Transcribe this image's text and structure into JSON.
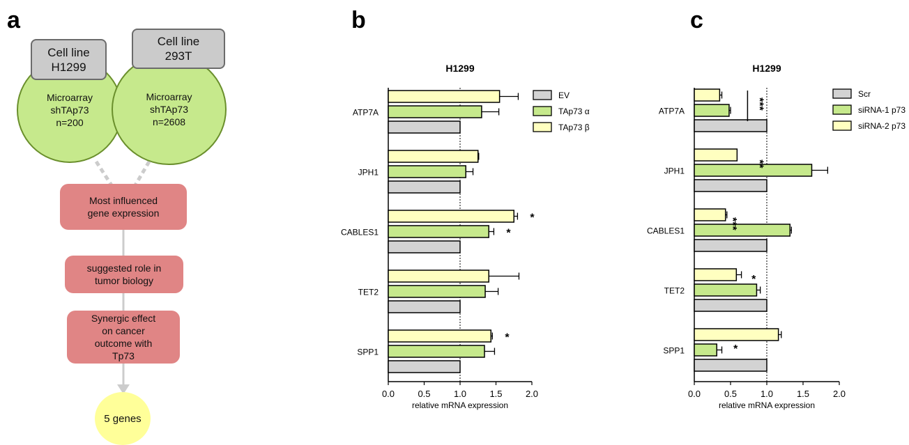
{
  "panel_a": {
    "letter": "a",
    "cell_box_1": "Cell line\nH1299",
    "cell_box_2": "Cell line\n293T",
    "circle_1": "Microarray\nshTAp73\nn=200",
    "circle_2": "Microarray\nshTAp73\nn=2608",
    "step_1": "Most influenced\ngene expression",
    "step_2": "suggested role in\ntumor biology",
    "step_3": "Synergic effect\non cancer\noutcome with\nTp73",
    "final": "5 genes",
    "colors": {
      "circle": "#c6e98c",
      "box": "#e08585",
      "cell_box": "#cbcbcb",
      "final": "#ffff99",
      "arrow": "#cccccc"
    }
  },
  "chart_data": [
    {
      "panel_letter": "b",
      "type": "bar",
      "orientation": "horizontal",
      "title": "H1299",
      "xlabel": "relative mRNA expression",
      "xlim": [
        0,
        2.0
      ],
      "xticks": [
        "0.0",
        "0.5",
        "1.0",
        "1.5",
        "2.0"
      ],
      "reference_line": 1.0,
      "categories": [
        "ATP7A",
        "JPH1",
        "CABLES1",
        "TET2",
        "SPP1"
      ],
      "series": [
        {
          "name": "EV",
          "color": "#d3d3d3",
          "values": [
            1.0,
            1.0,
            1.0,
            1.0,
            1.0
          ],
          "errors": [
            0,
            0,
            0,
            0,
            0
          ],
          "significance": [
            "",
            "",
            "",
            "",
            ""
          ]
        },
        {
          "name": "TAp73 α",
          "color": "#c6e98c",
          "values": [
            1.3,
            1.08,
            1.4,
            1.35,
            1.34
          ],
          "errors": [
            0.24,
            0.1,
            0.07,
            0.18,
            0.14
          ],
          "significance": [
            "",
            "",
            "*",
            "",
            ""
          ]
        },
        {
          "name": "TAp73 β",
          "color": "#ffffc0",
          "values": [
            1.55,
            1.25,
            1.75,
            1.4,
            1.43
          ],
          "errors": [
            0.26,
            0.01,
            0.05,
            0.42,
            0.02
          ],
          "significance": [
            "",
            "",
            "*",
            "",
            "*"
          ]
        }
      ],
      "legend_position": "top-right"
    },
    {
      "panel_letter": "c",
      "type": "bar",
      "orientation": "horizontal",
      "title": "H1299",
      "xlabel": "relative mRNA expression",
      "xlim": [
        0,
        2.0
      ],
      "xticks": [
        "0.0",
        "0.5",
        "1.0",
        "1.5",
        "2.0"
      ],
      "reference_line": 1.0,
      "categories": [
        "ATP7A",
        "JPH1",
        "CABLES1",
        "TET2",
        "SPP1"
      ],
      "series": [
        {
          "name": "Scr",
          "color": "#d3d3d3",
          "values": [
            1.0,
            1.0,
            1.0,
            1.0,
            1.0
          ],
          "errors": [
            0,
            0,
            0,
            0,
            0
          ],
          "significance": [
            "",
            "",
            "",
            "",
            ""
          ]
        },
        {
          "name": "siRNA-1 p73",
          "color": "#c6e98c",
          "values": [
            0.48,
            1.62,
            1.32,
            0.86,
            0.31
          ],
          "errors": [
            0.02,
            0.22,
            0.02,
            0.05,
            0.07
          ],
          "significance": [
            "",
            "",
            "",
            "",
            ""
          ]
        },
        {
          "name": "siRNA-2 p73",
          "color": "#ffffc0",
          "values": [
            0.35,
            0.59,
            0.43,
            0.58,
            1.16
          ],
          "errors": [
            0.03,
            0.0,
            0.02,
            0.07,
            0.04
          ],
          "significance": [
            "",
            "",
            "",
            "",
            ""
          ]
        }
      ],
      "extra_annotations": [
        {
          "text": "***",
          "category": "ATP7A",
          "x": 0.85,
          "rotated": true,
          "bracket": true
        },
        {
          "text": "**",
          "category": "JPH1",
          "x": 0.85,
          "rotated": true
        },
        {
          "text": "***",
          "category": "CABLES1",
          "x": 0.48,
          "rotated": true
        },
        {
          "text": "*",
          "category": "TET2",
          "x": 0.82,
          "rotated": false
        },
        {
          "text": "*",
          "category": "SPP1",
          "x": 0.57,
          "rotated": false
        }
      ],
      "legend_position": "top-right"
    }
  ]
}
